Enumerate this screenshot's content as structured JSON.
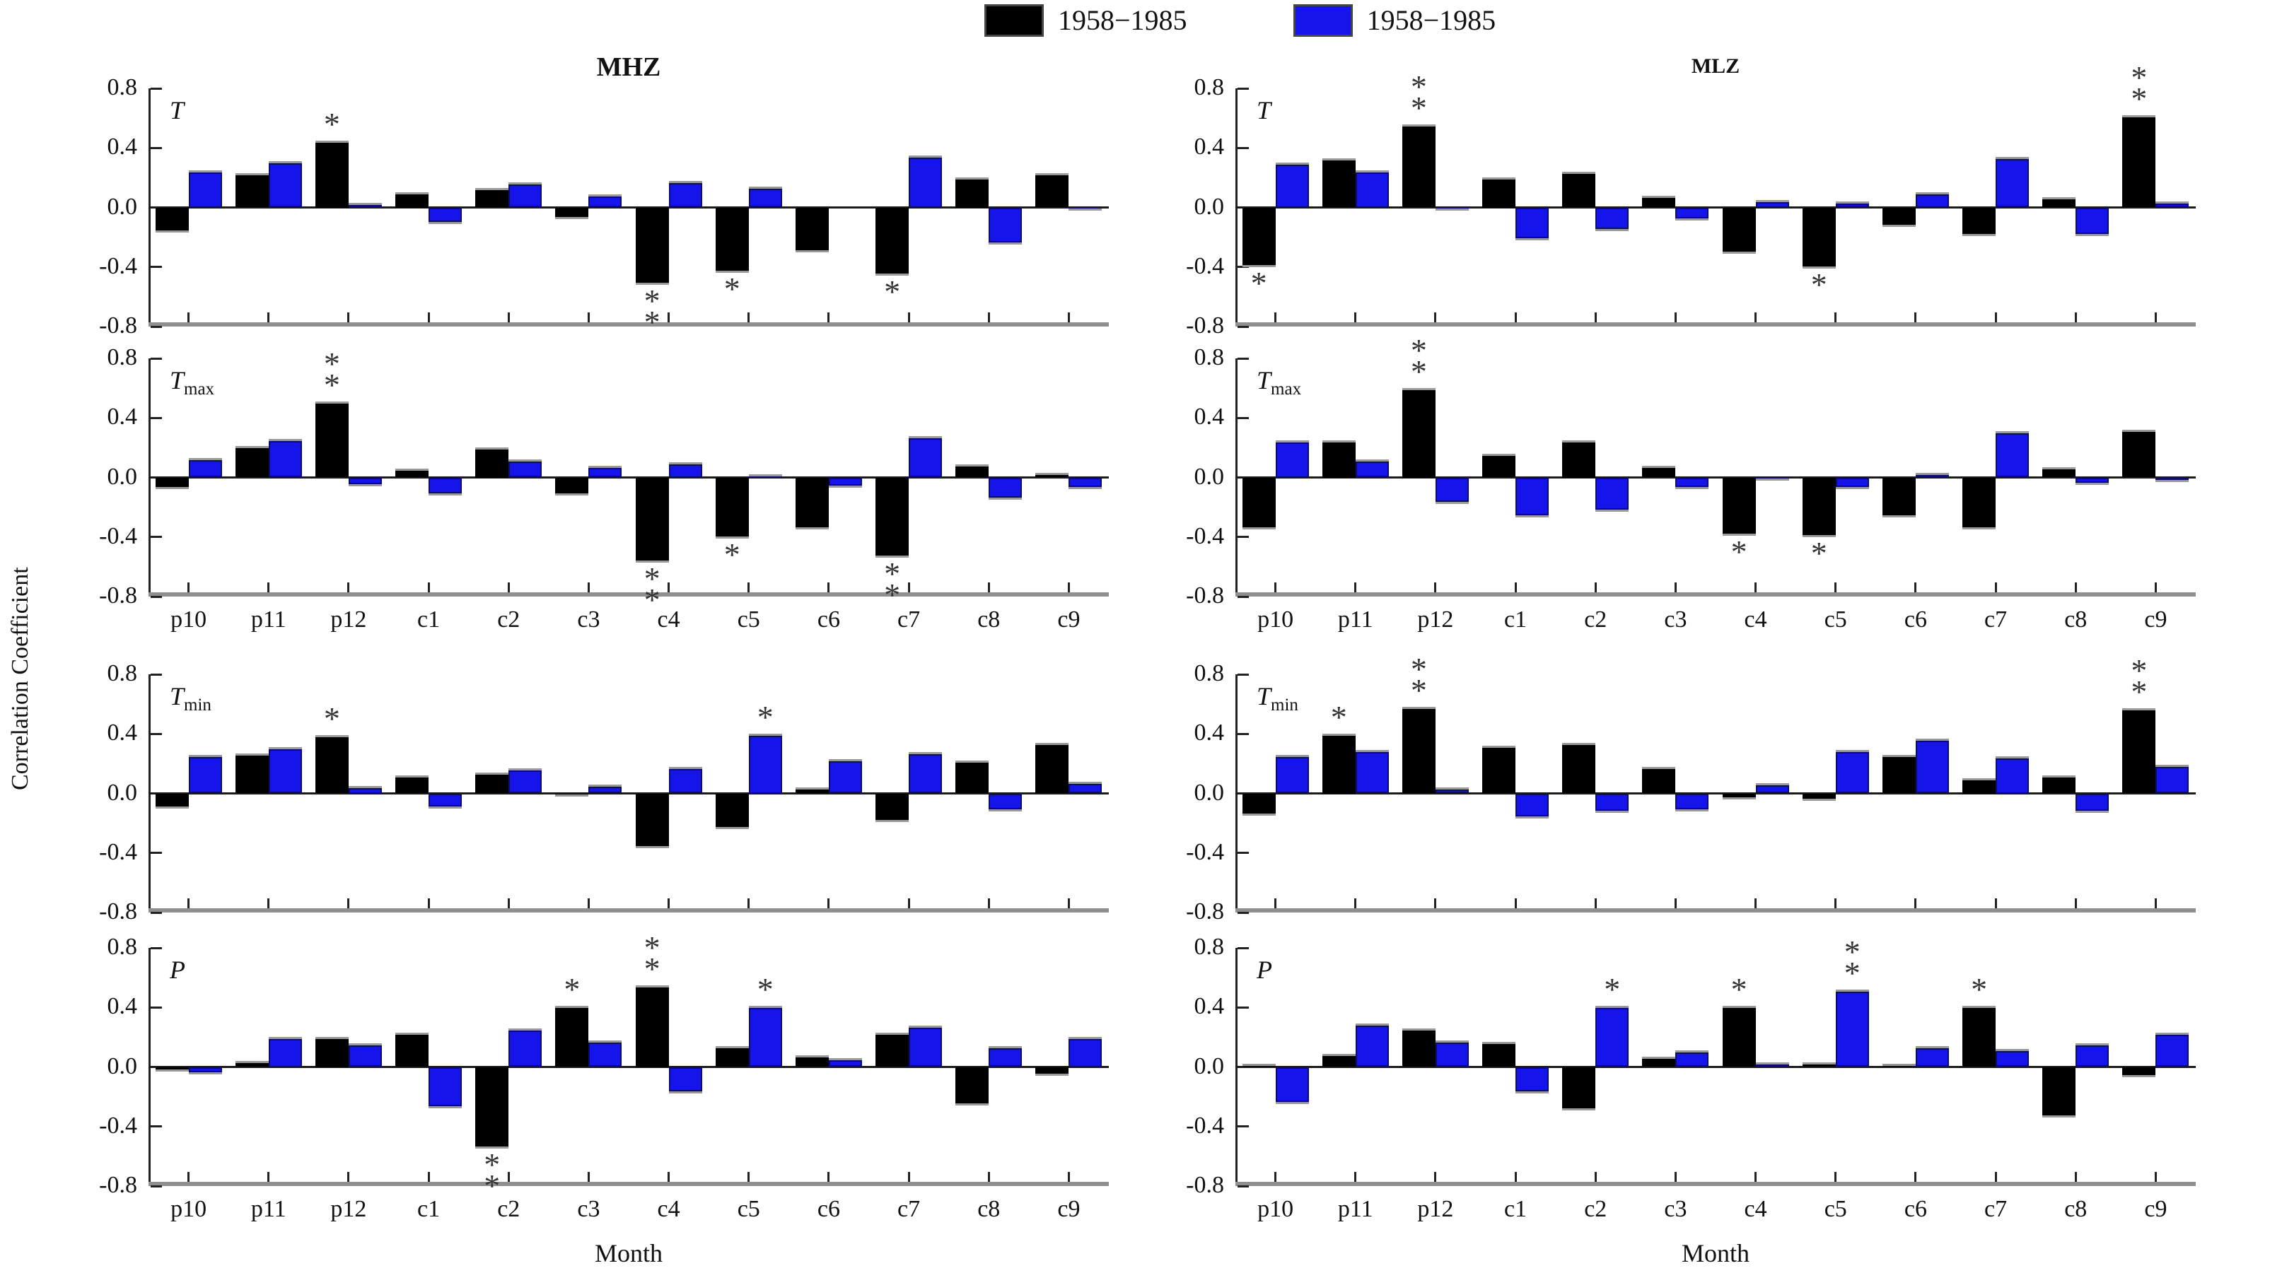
{
  "figure": {
    "ylabel": "Correlation Coefficient",
    "xlabel": "Month",
    "legend": [
      {
        "label": "1958−1985",
        "color": "#000000"
      },
      {
        "label": "1958−1985",
        "color": "#1414EB"
      }
    ],
    "series_colors": {
      "black": "#000000",
      "blue": "#1414EB"
    }
  },
  "chart_data": {
    "type": "bar",
    "categories": [
      "p10",
      "p11",
      "p12",
      "c1",
      "c2",
      "c3",
      "c4",
      "c5",
      "c6",
      "c7",
      "c8",
      "c9"
    ],
    "ylim": [
      -0.8,
      0.8
    ],
    "yticks": [
      "0.8",
      "0.4",
      "0.0",
      "-0.4",
      "-0.8"
    ],
    "columns": [
      "MHZ",
      "MLZ"
    ],
    "legend_position": "top-center",
    "grid": false,
    "panels": [
      {
        "column": "MHZ",
        "variable": "T",
        "variable_sub": "",
        "series": {
          "black": [
            -0.17,
            0.23,
            0.45,
            0.1,
            0.13,
            -0.08,
            -0.52,
            -0.44,
            -0.3,
            -0.46,
            0.2,
            0.23
          ],
          "blue": [
            0.25,
            0.31,
            0.03,
            -0.11,
            0.17,
            0.09,
            0.18,
            0.14,
            0.0,
            0.35,
            -0.25,
            -0.02
          ]
        },
        "significance": [
          {
            "category": "p12",
            "series": "black",
            "stars": "*",
            "position": "above"
          },
          {
            "category": "c4",
            "series": "black",
            "stars": "**",
            "position": "below"
          },
          {
            "category": "c5",
            "series": "black",
            "stars": "*",
            "position": "below"
          },
          {
            "category": "c7",
            "series": "black",
            "stars": "*",
            "position": "below"
          }
        ]
      },
      {
        "column": "MLZ",
        "variable": "T",
        "variable_sub": "",
        "series": {
          "black": [
            -0.4,
            0.33,
            0.56,
            0.2,
            0.24,
            0.08,
            -0.31,
            -0.41,
            -0.13,
            -0.19,
            0.07,
            0.62
          ],
          "blue": [
            0.3,
            0.25,
            -0.02,
            -0.22,
            -0.16,
            -0.09,
            0.05,
            0.04,
            0.1,
            0.34,
            -0.19,
            0.04
          ]
        },
        "significance": [
          {
            "category": "p10",
            "series": "black",
            "stars": "*",
            "position": "below"
          },
          {
            "category": "p12",
            "series": "black",
            "stars": "**",
            "position": "above"
          },
          {
            "category": "c5",
            "series": "black",
            "stars": "*",
            "position": "below"
          },
          {
            "category": "c9",
            "series": "black",
            "stars": "**",
            "position": "above"
          }
        ]
      },
      {
        "column": "MHZ",
        "variable": "T",
        "variable_sub": "max",
        "series": {
          "black": [
            -0.08,
            0.21,
            0.51,
            0.06,
            0.2,
            -0.12,
            -0.57,
            -0.41,
            -0.35,
            -0.54,
            0.09,
            0.03
          ],
          "blue": [
            0.13,
            0.26,
            -0.06,
            -0.12,
            0.12,
            0.08,
            0.1,
            0.02,
            -0.07,
            0.28,
            -0.15,
            -0.08
          ]
        },
        "significance": [
          {
            "category": "p12",
            "series": "black",
            "stars": "**",
            "position": "above"
          },
          {
            "category": "c4",
            "series": "black",
            "stars": "**",
            "position": "below"
          },
          {
            "category": "c5",
            "series": "black",
            "stars": "*",
            "position": "below"
          },
          {
            "category": "c7",
            "series": "black",
            "stars": "**",
            "position": "below"
          }
        ]
      },
      {
        "column": "MLZ",
        "variable": "T",
        "variable_sub": "max",
        "series": {
          "black": [
            -0.35,
            0.25,
            0.6,
            0.16,
            0.25,
            0.08,
            -0.39,
            -0.4,
            -0.27,
            -0.35,
            0.07,
            0.32
          ],
          "blue": [
            0.25,
            0.12,
            -0.18,
            -0.27,
            -0.23,
            -0.08,
            -0.02,
            -0.08,
            0.03,
            0.31,
            -0.05,
            -0.03
          ]
        },
        "significance": [
          {
            "category": "p12",
            "series": "black",
            "stars": "**",
            "position": "above"
          },
          {
            "category": "c4",
            "series": "black",
            "stars": "*",
            "position": "below"
          },
          {
            "category": "c5",
            "series": "black",
            "stars": "*",
            "position": "below"
          }
        ]
      },
      {
        "column": "MHZ",
        "variable": "T",
        "variable_sub": "min",
        "series": {
          "black": [
            -0.1,
            0.27,
            0.39,
            0.12,
            0.14,
            -0.02,
            -0.37,
            -0.24,
            0.04,
            -0.19,
            0.22,
            0.34
          ],
          "blue": [
            0.26,
            0.31,
            0.05,
            -0.1,
            0.17,
            0.06,
            0.18,
            0.4,
            0.23,
            0.28,
            -0.12,
            0.08
          ]
        },
        "significance": [
          {
            "category": "p12",
            "series": "black",
            "stars": "*",
            "position": "above"
          },
          {
            "category": "c5",
            "series": "blue",
            "stars": "*",
            "position": "above"
          }
        ]
      },
      {
        "column": "MLZ",
        "variable": "T",
        "variable_sub": "min",
        "series": {
          "black": [
            -0.15,
            0.4,
            0.58,
            0.32,
            0.34,
            0.18,
            -0.04,
            -0.05,
            0.26,
            0.1,
            0.12,
            0.57
          ],
          "blue": [
            0.26,
            0.29,
            0.04,
            -0.17,
            -0.13,
            -0.12,
            0.07,
            0.29,
            0.37,
            0.25,
            -0.13,
            0.19
          ]
        },
        "significance": [
          {
            "category": "p11",
            "series": "black",
            "stars": "*",
            "position": "above"
          },
          {
            "category": "p12",
            "series": "black",
            "stars": "**",
            "position": "above"
          },
          {
            "category": "c9",
            "series": "black",
            "stars": "**",
            "position": "above"
          }
        ]
      },
      {
        "column": "MHZ",
        "variable": "P",
        "variable_sub": "",
        "series": {
          "black": [
            -0.03,
            0.04,
            0.2,
            0.23,
            -0.55,
            0.41,
            0.55,
            0.14,
            0.08,
            0.23,
            -0.26,
            -0.06
          ],
          "blue": [
            -0.05,
            0.2,
            0.16,
            -0.28,
            0.26,
            0.18,
            -0.18,
            0.41,
            0.06,
            0.28,
            0.14,
            0.2
          ]
        },
        "significance": [
          {
            "category": "c2",
            "series": "black",
            "stars": "**",
            "position": "below"
          },
          {
            "category": "c3",
            "series": "black",
            "stars": "*",
            "position": "above"
          },
          {
            "category": "c4",
            "series": "black",
            "stars": "**",
            "position": "above"
          },
          {
            "category": "c5",
            "series": "blue",
            "stars": "*",
            "position": "above"
          }
        ]
      },
      {
        "column": "MLZ",
        "variable": "P",
        "variable_sub": "",
        "series": {
          "black": [
            0.02,
            0.09,
            0.26,
            0.17,
            -0.29,
            0.07,
            0.41,
            0.03,
            0.02,
            0.41,
            -0.34,
            -0.07
          ],
          "blue": [
            -0.25,
            0.29,
            0.18,
            -0.18,
            0.41,
            0.11,
            0.03,
            0.52,
            0.14,
            0.12,
            0.16,
            0.23
          ]
        },
        "significance": [
          {
            "category": "c2",
            "series": "blue",
            "stars": "*",
            "position": "above"
          },
          {
            "category": "c4",
            "series": "black",
            "stars": "*",
            "position": "above"
          },
          {
            "category": "c5",
            "series": "blue",
            "stars": "**",
            "position": "above"
          },
          {
            "category": "c7",
            "series": "black",
            "stars": "*",
            "position": "above"
          }
        ]
      }
    ]
  }
}
